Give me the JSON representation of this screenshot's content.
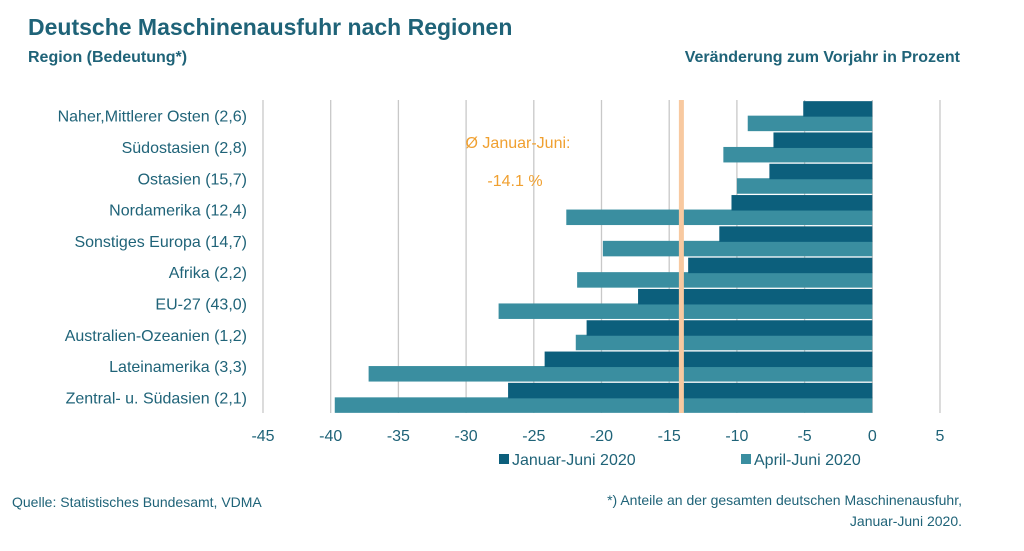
{
  "header": {
    "title": "Deutsche Maschinenausfuhr nach Regionen",
    "left_subtitle": "Region (Bedeutung*)",
    "right_subtitle": "Veränderung zum Vorjahr in Prozent"
  },
  "footer": {
    "source": "Quelle: Statistisches Bundesamt, VDMA",
    "footnote_line1": "*) Anteile an der gesamten deutschen Maschinenausfuhr,",
    "footnote_line2": "Januar-Juni 2020."
  },
  "colors": {
    "text": "#1f6378",
    "series_dark": "#0c5f7c",
    "series_light": "#3a8ea0",
    "average_line": "#f8c9a0",
    "annotation": "#f0a030",
    "grid": "#c8c8c8"
  },
  "chart_data": {
    "type": "bar",
    "orientation": "horizontal",
    "categories": [
      "Naher,Mittlerer Osten (2,6)",
      "Südostasien (2,8)",
      "Ostasien (15,7)",
      "Nordamerika (12,4)",
      "Sonstiges Europa (14,7)",
      "Afrika (2,2)",
      "EU-27 (43,0)",
      "Australien-Ozeanien (1,2)",
      "Lateinamerika (3,3)",
      "Zentral- u. Südasien (2,1)"
    ],
    "series": [
      {
        "name": "Januar-Juni 2020",
        "values": [
          -5.1,
          -7.3,
          -7.6,
          -10.4,
          -11.3,
          -13.6,
          -17.3,
          -21.1,
          -24.2,
          -26.9
        ]
      },
      {
        "name": "April-Juni 2020",
        "values": [
          -9.2,
          -11.0,
          -10.0,
          -22.6,
          -19.9,
          -21.8,
          -27.6,
          -21.9,
          -37.2,
          -39.7
        ]
      }
    ],
    "average": {
      "label": "Ø Januar-Juni:",
      "value": -14.1,
      "value_label": "-14.1 %"
    },
    "xlim": [
      -45,
      5
    ],
    "xticks": [
      -45,
      -40,
      -35,
      -30,
      -25,
      -20,
      -15,
      -10,
      -5,
      0,
      5
    ],
    "grid": true,
    "legend": "bottom"
  }
}
